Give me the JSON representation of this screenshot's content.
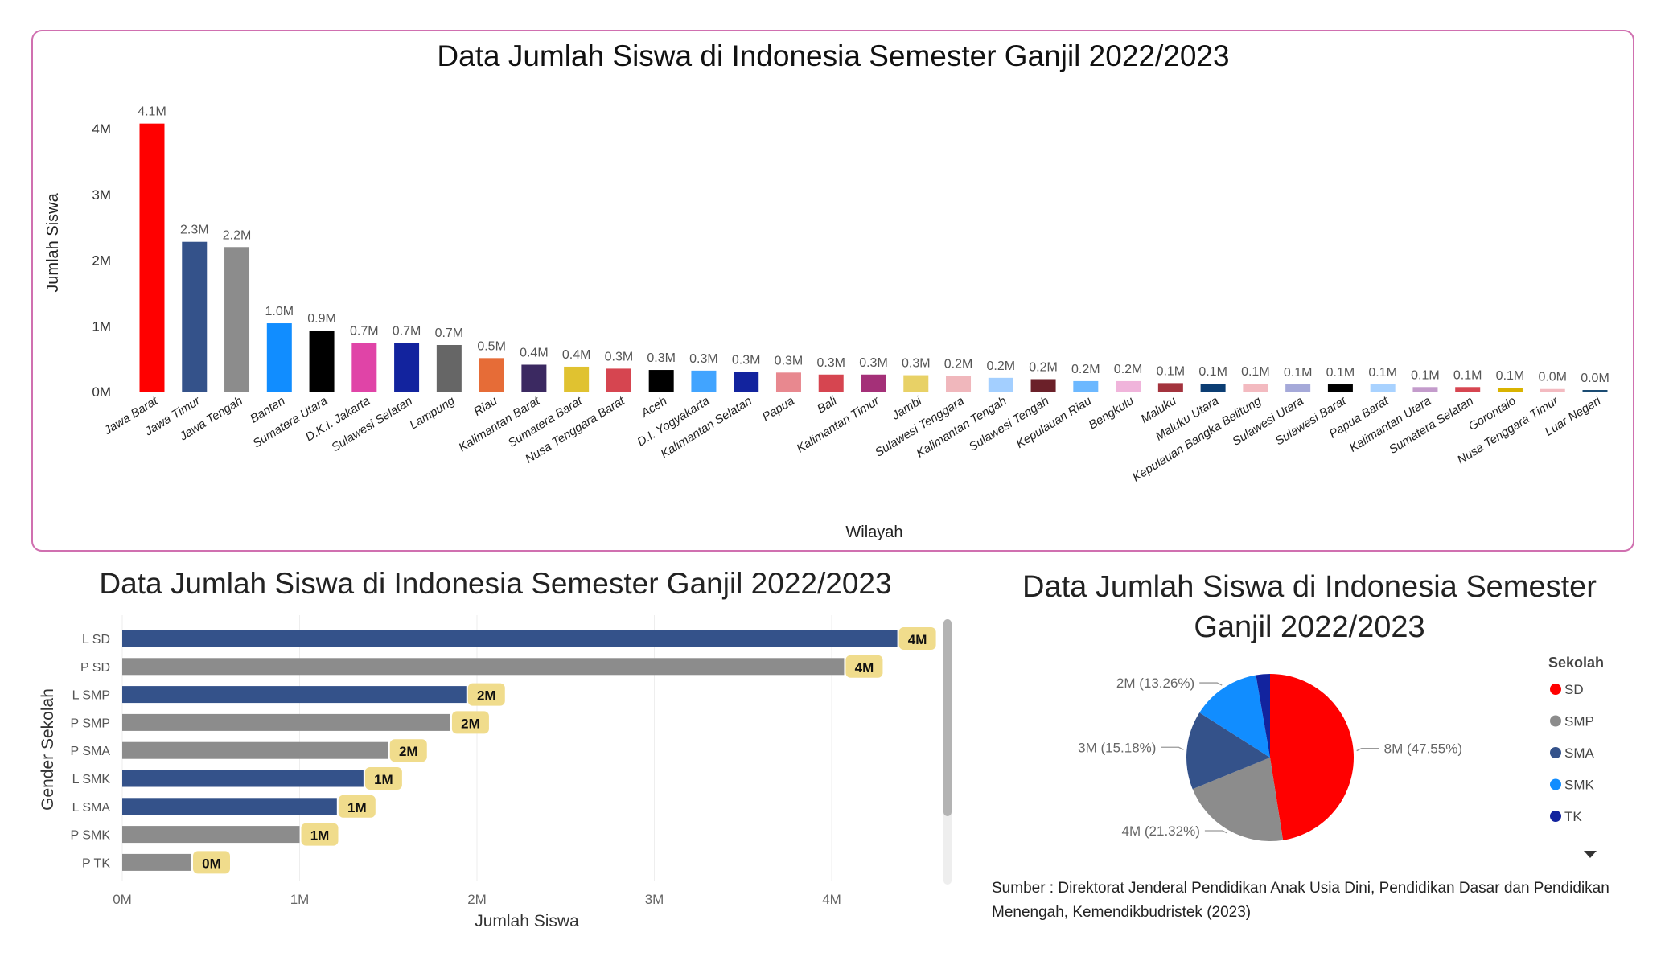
{
  "chart_data": [
    {
      "type": "bar",
      "title": "Data Jumlah Siswa di Indonesia Semester Ganjil 2022/2023",
      "xlabel": "Wilayah",
      "ylabel": "Jumlah Siswa",
      "ylim": [
        0,
        4.3
      ],
      "y_ticks": [
        "0M",
        "1M",
        "2M",
        "3M",
        "4M"
      ],
      "grid": false,
      "categories": [
        "Jawa Barat",
        "Jawa Timur",
        "Jawa Tengah",
        "Banten",
        "Sumatera Utara",
        "D.K.I. Jakarta",
        "Sulawesi Selatan",
        "Lampung",
        "Riau",
        "Kalimantan Barat",
        "Sumatera Barat",
        "Nusa Tenggara Barat",
        "Aceh",
        "D.I. Yogyakarta",
        "Kalimantan Selatan",
        "Papua",
        "Bali",
        "Kalimantan Timur",
        "Jambi",
        "Sulawesi Tenggara",
        "Kalimantan Tengah",
        "Sulawesi Tengah",
        "Kepulauan Riau",
        "Bengkulu",
        "Maluku",
        "Maluku Utara",
        "Kepulauan Bangka Belitung",
        "Sulawesi Utara",
        "Sulawesi Barat",
        "Papua Barat",
        "Kalimantan Utara",
        "Sumatera Selatan",
        "Gorontalo",
        "Nusa Tenggara Timur",
        "Luar Negeri"
      ],
      "values": [
        4.08,
        2.28,
        2.2,
        1.04,
        0.93,
        0.74,
        0.74,
        0.71,
        0.51,
        0.41,
        0.38,
        0.35,
        0.33,
        0.32,
        0.3,
        0.29,
        0.26,
        0.26,
        0.25,
        0.24,
        0.21,
        0.19,
        0.16,
        0.16,
        0.13,
        0.12,
        0.12,
        0.11,
        0.11,
        0.11,
        0.07,
        0.07,
        0.06,
        0.04,
        0.01
      ],
      "data_labels": [
        "4.1M",
        "2.3M",
        "2.2M",
        "1.0M",
        "0.9M",
        "0.7M",
        "0.7M",
        "0.7M",
        "0.5M",
        "0.4M",
        "0.4M",
        "0.3M",
        "0.3M",
        "0.3M",
        "0.3M",
        "0.3M",
        "0.3M",
        "0.3M",
        "0.3M",
        "0.2M",
        "0.2M",
        "0.2M",
        "0.2M",
        "0.2M",
        "0.1M",
        "0.1M",
        "0.1M",
        "0.1M",
        "0.1M",
        "0.1M",
        "0.1M",
        "0.1M",
        "0.1M",
        "0.0M",
        "0.0M"
      ],
      "colors": [
        "#FF0000",
        "#34528A",
        "#8C8C8C",
        "#118DFF",
        "#000000",
        "#E044A7",
        "#12239E",
        "#666666",
        "#E66C37",
        "#3B2961",
        "#E0C230",
        "#D64550",
        "#000000",
        "#41A4FF",
        "#12239E",
        "#E8888F",
        "#D64550",
        "#A43078",
        "#E8D166",
        "#F0B7BC",
        "#A3CFFF",
        "#6B2029",
        "#6CB8FF",
        "#F0B4DB",
        "#A3333D",
        "#0B3D73",
        "#F3BAC0",
        "#A5A9D9",
        "#000000",
        "#A8D2FF",
        "#C39BCB",
        "#D64550",
        "#D9B300",
        "#F3BAC0",
        "#1B4C73"
      ],
      "border_color": "#D070B0"
    },
    {
      "type": "bar",
      "orientation": "horizontal",
      "title": "Data Jumlah Siswa di Indonesia Semester Ganjil 2022/2023",
      "xlabel": "Jumlah Siswa",
      "ylabel": "Gender Sekolah",
      "xlim": [
        0,
        4.6
      ],
      "x_ticks": [
        "0M",
        "1M",
        "2M",
        "3M",
        "4M"
      ],
      "grid": true,
      "categories": [
        "L SD",
        "P SD",
        "L SMP",
        "P SMP",
        "P SMA",
        "L SMK",
        "L SMA",
        "P SMK",
        "P TK"
      ],
      "values": [
        4.37,
        4.07,
        1.94,
        1.85,
        1.5,
        1.36,
        1.21,
        1.0,
        0.39
      ],
      "data_labels": [
        "4M",
        "4M",
        "2M",
        "2M",
        "2M",
        "1M",
        "1M",
        "1M",
        "0M"
      ],
      "colors": [
        "#34528A",
        "#8C8C8C",
        "#34528A",
        "#8C8C8C",
        "#8C8C8C",
        "#34528A",
        "#34528A",
        "#8C8C8C",
        "#8C8C8C"
      ],
      "label_background": "#F0DC8C",
      "scrollbar": true
    },
    {
      "type": "pie",
      "title_lines": [
        "Data Jumlah Siswa di Indonesia Semester",
        "Ganjil 2022/2023"
      ],
      "legend_title": "Sekolah",
      "legend_position": "right",
      "categories": [
        "SD",
        "SMP",
        "SMA",
        "SMK",
        "TK"
      ],
      "values": [
        8.45,
        3.79,
        2.7,
        2.36,
        0.48
      ],
      "percent": [
        47.55,
        21.32,
        15.18,
        13.26,
        2.69
      ],
      "data_labels": [
        "8M (47.55%)",
        "4M (21.32%)",
        "3M (15.18%)",
        "2M (13.26%)",
        ""
      ],
      "colors": [
        "#FF0000",
        "#8C8C8C",
        "#34528A",
        "#118DFF",
        "#12239E"
      ]
    }
  ],
  "source": "Sumber : Direktorat Jenderal Pendidikan Anak Usia Dini, Pendidikan Dasar dan Pendidikan Menengah, Kemendikbudristek (2023)"
}
